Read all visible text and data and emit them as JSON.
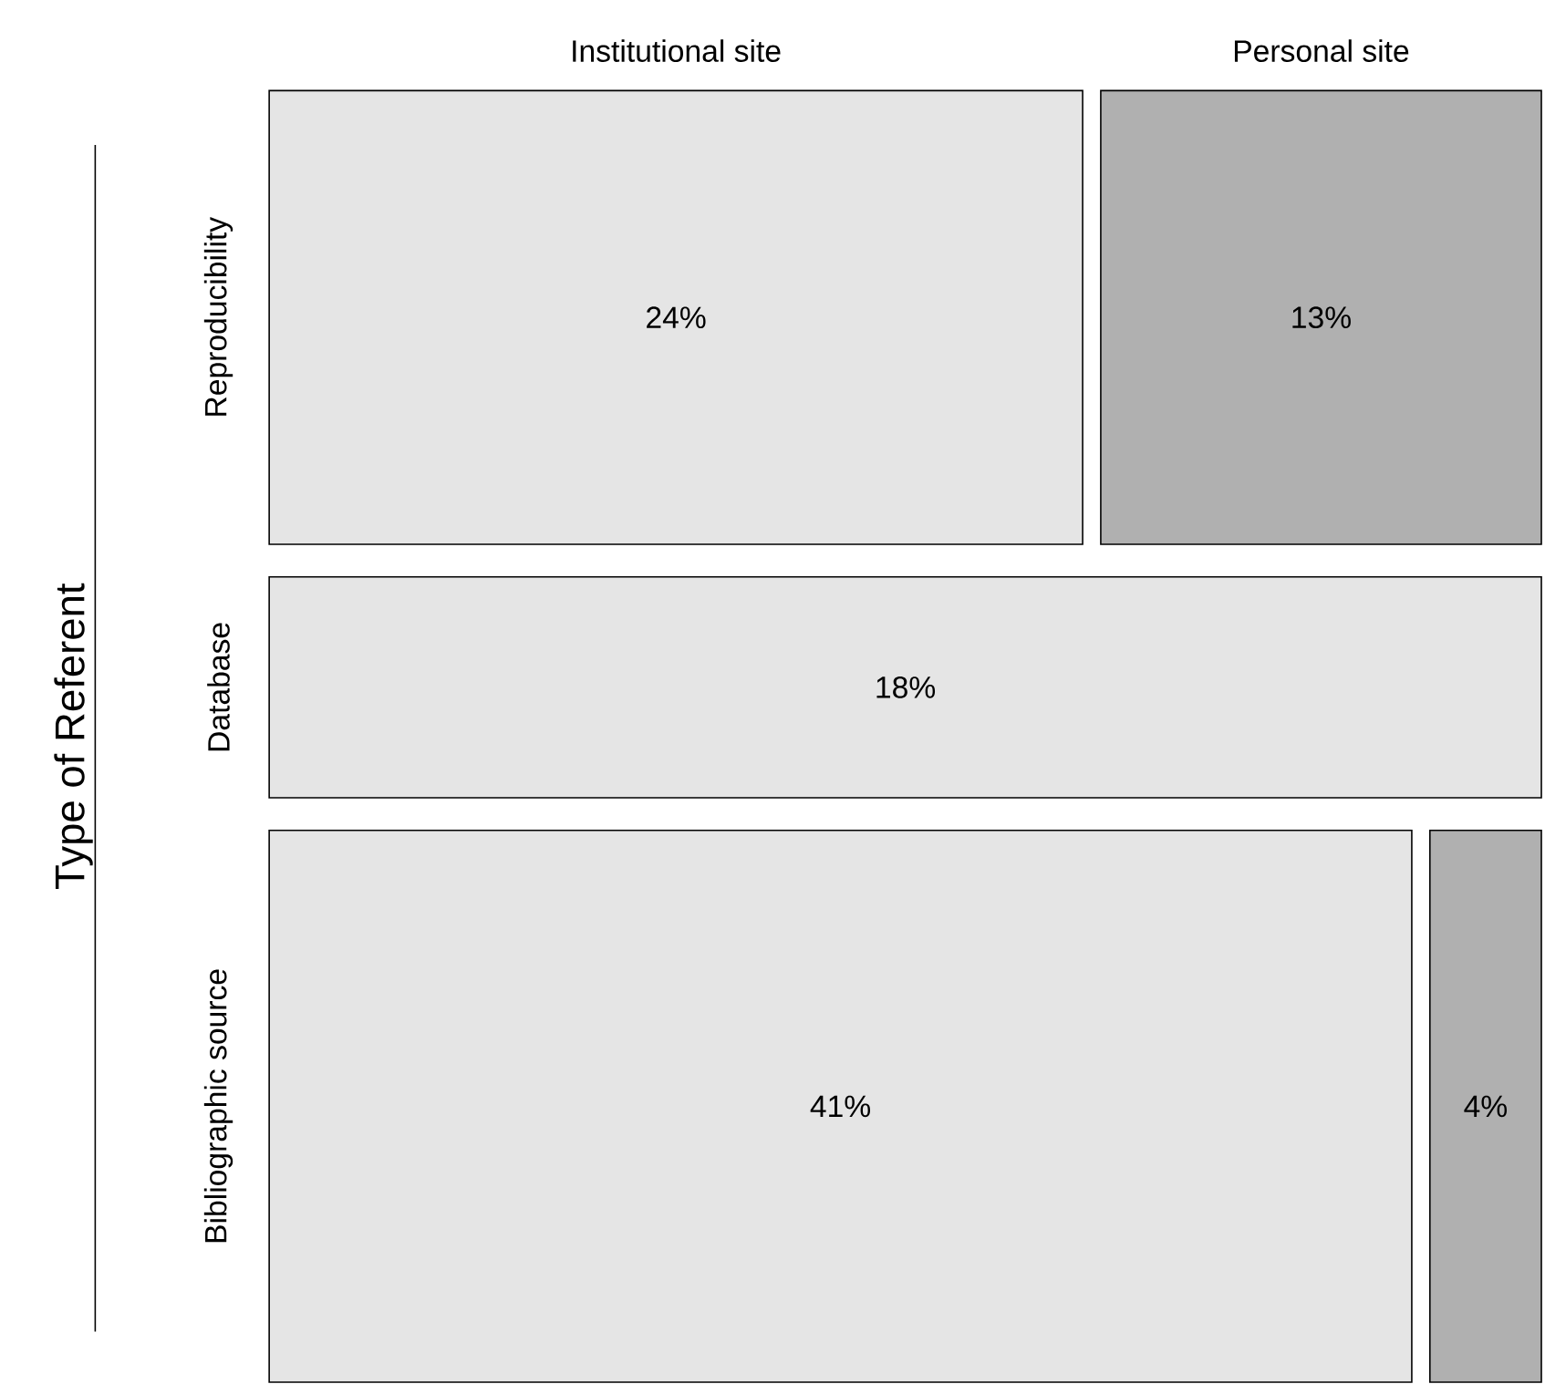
{
  "chart_data": {
    "type": "other",
    "ylabel": "Type of Referent",
    "categories": [
      "Reproducibility",
      "Database",
      "Bibliographic source"
    ],
    "series": [
      {
        "name": "Institutional site",
        "color": "#e5e5e5",
        "values": [
          24,
          18,
          41
        ],
        "value_labels": [
          "24%",
          "18%",
          "41%"
        ]
      },
      {
        "name": "Personal site",
        "color": "#b0b0b0",
        "values": [
          13,
          null,
          4
        ],
        "value_labels": [
          "13%",
          null,
          "4%"
        ]
      }
    ]
  }
}
